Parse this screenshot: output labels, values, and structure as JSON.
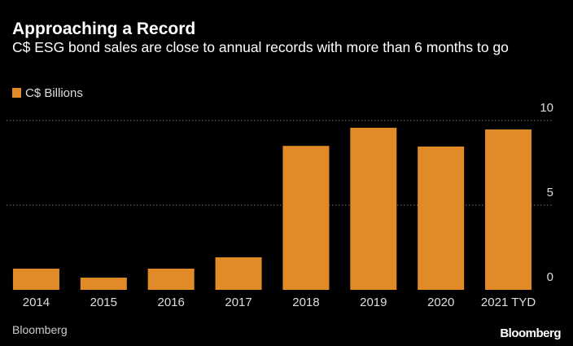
{
  "chart_data": {
    "type": "bar",
    "title": "Approaching a Record",
    "subtitle": "C$ ESG bond sales are close to annual records with more than 6 months to go",
    "categories": [
      "2014",
      "2015",
      "2016",
      "2017",
      "2018",
      "2019",
      "2020",
      "2021 TYD"
    ],
    "series": [
      {
        "name": "C$ Billions",
        "color": "#e08b28",
        "values": [
          1.25,
          0.72,
          1.25,
          1.92,
          8.5,
          9.57,
          8.46,
          9.47
        ]
      }
    ],
    "ylim": [
      0,
      10
    ],
    "yticks": [
      0,
      5,
      10
    ],
    "grid": true,
    "legend": "top-left",
    "source": "Bloomberg",
    "logo": "Bloomberg"
  }
}
